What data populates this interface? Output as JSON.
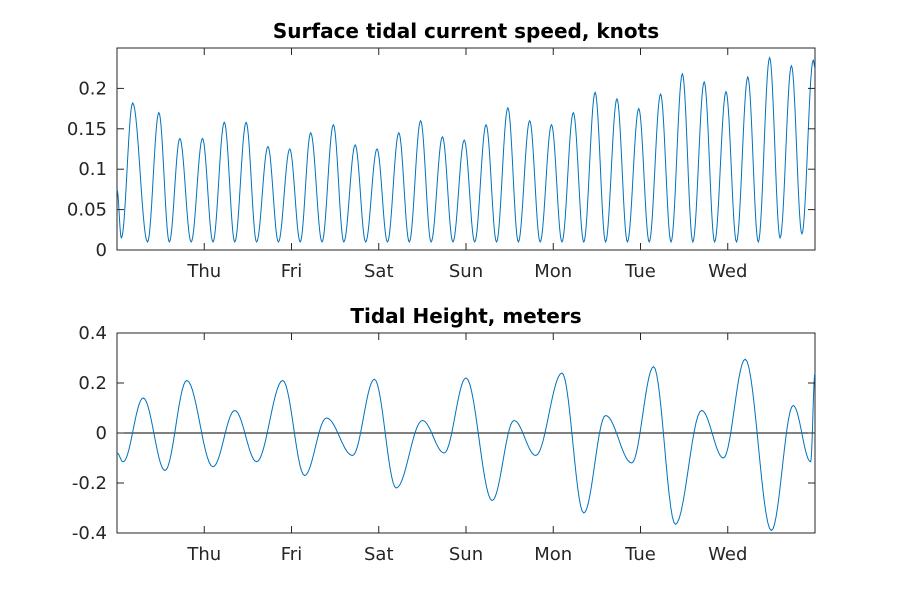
{
  "chart_data": [
    {
      "type": "line",
      "title": "Surface tidal current speed, knots",
      "xlabel": "",
      "ylabel": "",
      "xlim": [
        0,
        8
      ],
      "ylim": [
        0,
        0.25
      ],
      "x_ticks": [
        1,
        2,
        3,
        4,
        5,
        6,
        7
      ],
      "x_tick_labels": [
        "Thu",
        "Fri",
        "Sat",
        "Sun",
        "Mon",
        "Tue",
        "Wed"
      ],
      "y_ticks": [
        0,
        0.05,
        0.1,
        0.15,
        0.2
      ],
      "y_tick_labels": [
        "0",
        "0.05",
        "0.1",
        "0.15",
        "0.2"
      ],
      "grid": false,
      "legend": "none",
      "line_color": "#0072BD",
      "series": [
        {
          "x": [
            0,
            0.05,
            0.18,
            0.35,
            0.48,
            0.6,
            0.72,
            0.85,
            0.98,
            1.1,
            1.23,
            1.35,
            1.48,
            1.6,
            1.73,
            1.85,
            1.98,
            2.1,
            2.22,
            2.35,
            2.48,
            2.6,
            2.73,
            2.85,
            2.98,
            3.1,
            3.23,
            3.35,
            3.48,
            3.6,
            3.73,
            3.85,
            3.98,
            4.1,
            4.23,
            4.35,
            4.48,
            4.6,
            4.73,
            4.85,
            4.98,
            5.1,
            5.23,
            5.35,
            5.48,
            5.6,
            5.73,
            5.85,
            5.98,
            6.1,
            6.23,
            6.35,
            6.48,
            6.6,
            6.73,
            6.85,
            6.98,
            7.1,
            7.23,
            7.35,
            7.48,
            7.6,
            7.73,
            7.85,
            7.98,
            8.0
          ],
          "y": [
            0.075,
            0.015,
            0.182,
            0.01,
            0.17,
            0.01,
            0.138,
            0.01,
            0.138,
            0.01,
            0.158,
            0.01,
            0.158,
            0.01,
            0.128,
            0.01,
            0.125,
            0.01,
            0.145,
            0.01,
            0.155,
            0.01,
            0.13,
            0.01,
            0.125,
            0.01,
            0.145,
            0.01,
            0.16,
            0.01,
            0.14,
            0.01,
            0.136,
            0.01,
            0.155,
            0.01,
            0.176,
            0.01,
            0.16,
            0.01,
            0.155,
            0.01,
            0.17,
            0.01,
            0.195,
            0.01,
            0.187,
            0.01,
            0.175,
            0.01,
            0.193,
            0.01,
            0.218,
            0.01,
            0.208,
            0.01,
            0.196,
            0.01,
            0.214,
            0.01,
            0.238,
            0.015,
            0.228,
            0.02,
            0.235,
            0.225
          ]
        }
      ]
    },
    {
      "type": "line",
      "title": "Tidal Height, meters",
      "xlabel": "",
      "ylabel": "",
      "xlim": [
        0,
        8
      ],
      "ylim": [
        -0.4,
        0.4
      ],
      "x_ticks": [
        1,
        2,
        3,
        4,
        5,
        6,
        7
      ],
      "x_tick_labels": [
        "Thu",
        "Fri",
        "Sat",
        "Sun",
        "Mon",
        "Tue",
        "Wed"
      ],
      "y_ticks": [
        -0.4,
        -0.2,
        0,
        0.2,
        0.4
      ],
      "y_tick_labels": [
        "-0.4",
        "-0.2",
        "0",
        "0.2",
        "0.4"
      ],
      "grid": false,
      "legend": "none",
      "line_color": "#0072BD",
      "zero_line": true,
      "series": [
        {
          "x": [
            0,
            0.07,
            0.3,
            0.55,
            0.8,
            1.1,
            1.35,
            1.6,
            1.9,
            2.15,
            2.4,
            2.7,
            2.95,
            3.2,
            3.5,
            3.75,
            4.0,
            4.3,
            4.55,
            4.8,
            5.1,
            5.35,
            5.6,
            5.9,
            6.15,
            6.4,
            6.7,
            6.95,
            7.2,
            7.5,
            7.75,
            7.95,
            8.0
          ],
          "y": [
            -0.08,
            -0.115,
            0.14,
            -0.15,
            0.21,
            -0.135,
            0.09,
            -0.115,
            0.21,
            -0.17,
            0.06,
            -0.09,
            0.215,
            -0.22,
            0.05,
            -0.08,
            0.22,
            -0.27,
            0.05,
            -0.09,
            0.24,
            -0.32,
            0.07,
            -0.12,
            0.265,
            -0.365,
            0.09,
            -0.1,
            0.295,
            -0.39,
            0.11,
            -0.115,
            0.24
          ]
        }
      ]
    }
  ]
}
